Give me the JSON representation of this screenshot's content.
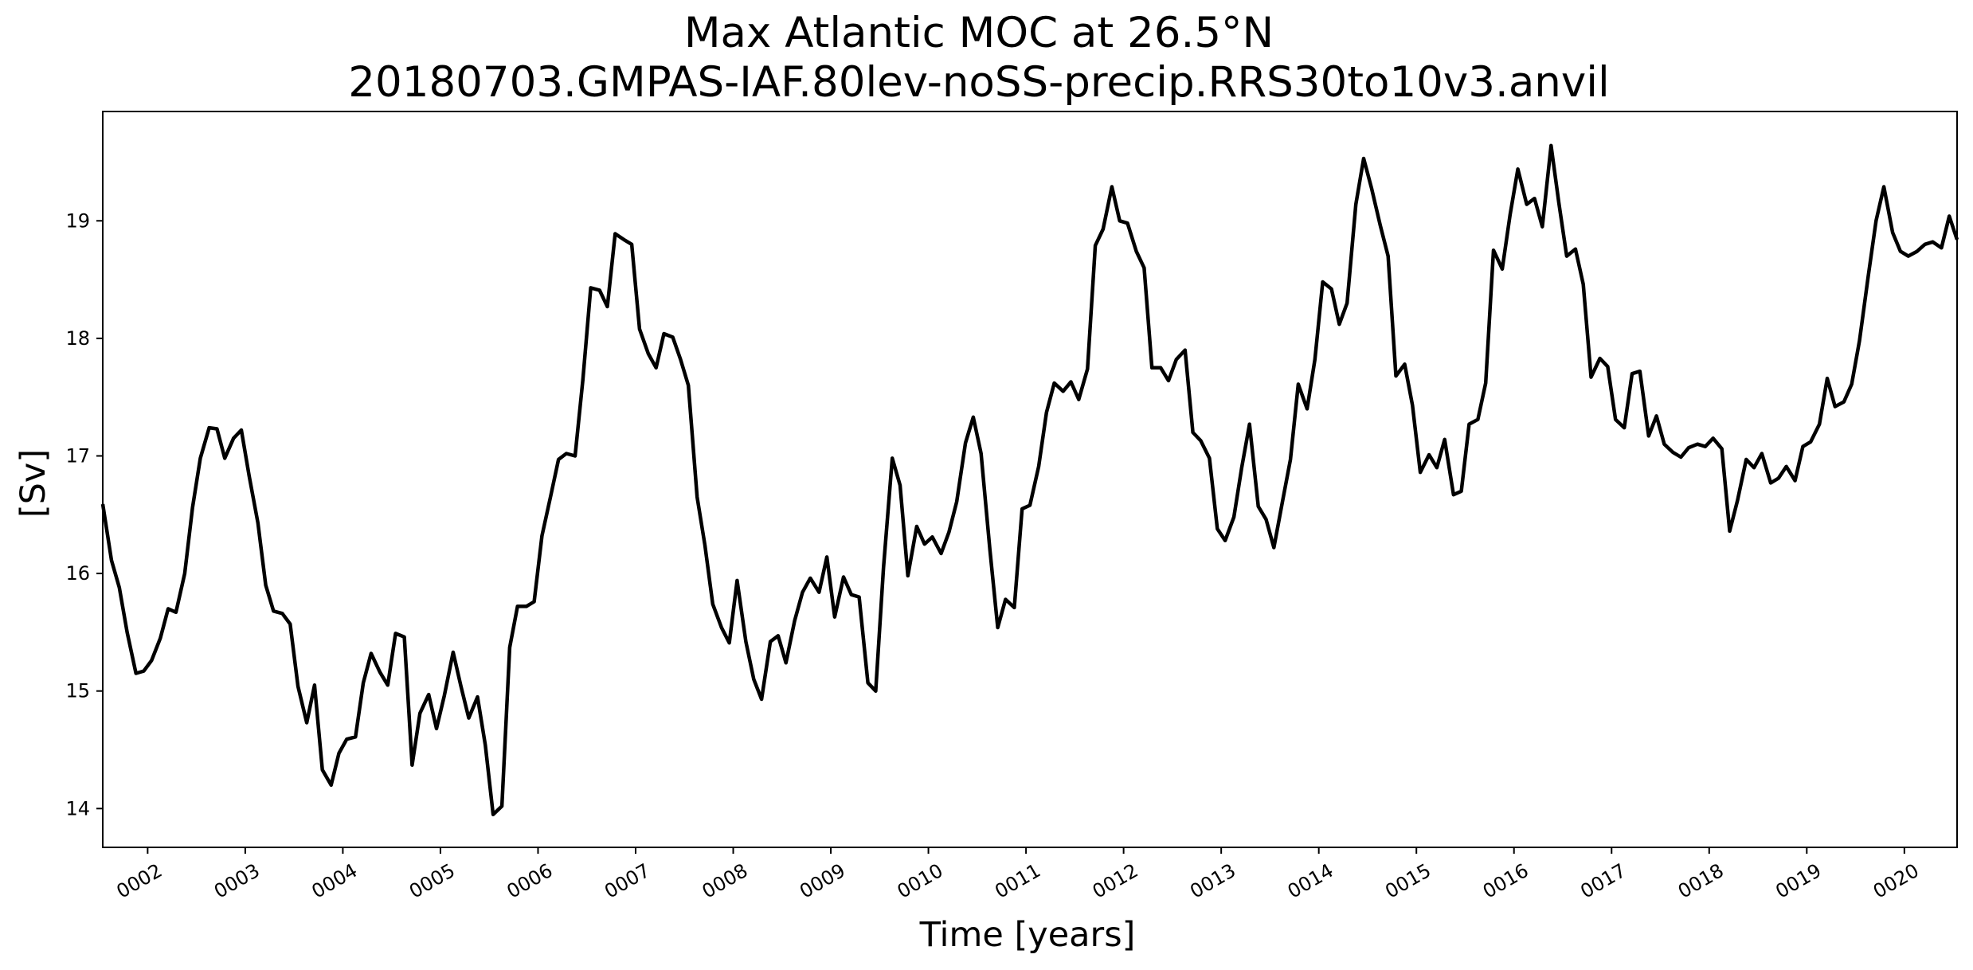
{
  "chart_data": {
    "type": "line",
    "title": "Max Atlantic MOC at 26.5°N",
    "subtitle": "20180703.GMPAS-IAF.80lev-noSS-precip.RRS30to10v3.anvil",
    "xlabel": "Time [years]",
    "ylabel": "[Sv]",
    "xlim": [
      1.54,
      20.54
    ],
    "ylim": [
      13.67,
      19.93
    ],
    "x_ticks": [
      {
        "value": 2,
        "label": "0002"
      },
      {
        "value": 3,
        "label": "0003"
      },
      {
        "value": 4,
        "label": "0004"
      },
      {
        "value": 5,
        "label": "0005"
      },
      {
        "value": 6,
        "label": "0006"
      },
      {
        "value": 7,
        "label": "0007"
      },
      {
        "value": 8,
        "label": "0008"
      },
      {
        "value": 9,
        "label": "0009"
      },
      {
        "value": 10,
        "label": "0010"
      },
      {
        "value": 11,
        "label": "0011"
      },
      {
        "value": 12,
        "label": "0012"
      },
      {
        "value": 13,
        "label": "0013"
      },
      {
        "value": 14,
        "label": "0014"
      },
      {
        "value": 15,
        "label": "0015"
      },
      {
        "value": 16,
        "label": "0016"
      },
      {
        "value": 17,
        "label": "0017"
      },
      {
        "value": 18,
        "label": "0018"
      },
      {
        "value": 19,
        "label": "0019"
      },
      {
        "value": 20,
        "label": "0020"
      }
    ],
    "y_ticks": [
      {
        "value": 14,
        "label": "14"
      },
      {
        "value": 15,
        "label": "15"
      },
      {
        "value": 16,
        "label": "16"
      },
      {
        "value": 17,
        "label": "17"
      },
      {
        "value": 18,
        "label": "18"
      },
      {
        "value": 19,
        "label": "19"
      }
    ],
    "grid": false,
    "line_color": "#000000",
    "series": [
      {
        "x": [
          1.54,
          1.63,
          1.71,
          1.79,
          1.88,
          1.96,
          2.04,
          2.13,
          2.21,
          2.29,
          2.38,
          2.46,
          2.54,
          2.63,
          2.71,
          2.79,
          2.88,
          2.96,
          3.04,
          3.13,
          3.21,
          3.29,
          3.38,
          3.46,
          3.54,
          3.63,
          3.71,
          3.79,
          3.88,
          3.96,
          4.04,
          4.13,
          4.21,
          4.29,
          4.38,
          4.46,
          4.54,
          4.63,
          4.71,
          4.79,
          4.88,
          4.96,
          5.04,
          5.13,
          5.21,
          5.29,
          5.38,
          5.46,
          5.54,
          5.63,
          5.71,
          5.79,
          5.88,
          5.96,
          6.04,
          6.13,
          6.21,
          6.29,
          6.38,
          6.46,
          6.54,
          6.63,
          6.71,
          6.79,
          6.88,
          6.96,
          7.04,
          7.13,
          7.21,
          7.29,
          7.38,
          7.46,
          7.54,
          7.63,
          7.71,
          7.79,
          7.88,
          7.96,
          8.04,
          8.13,
          8.21,
          8.29,
          8.38,
          8.46,
          8.54,
          8.63,
          8.71,
          8.79,
          8.88,
          8.96,
          9.04,
          9.13,
          9.21,
          9.29,
          9.38,
          9.46,
          9.54,
          9.63,
          9.71,
          9.79,
          9.88,
          9.96,
          10.04,
          10.13,
          10.21,
          10.29,
          10.38,
          10.46,
          10.54,
          10.63,
          10.71,
          10.79,
          10.88,
          10.96,
          11.04,
          11.13,
          11.21,
          11.29,
          11.38,
          11.46,
          11.54,
          11.63,
          11.71,
          11.79,
          11.88,
          11.96,
          12.04,
          12.13,
          12.21,
          12.29,
          12.38,
          12.46,
          12.54,
          12.63,
          12.71,
          12.79,
          12.88,
          12.96,
          13.04,
          13.13,
          13.21,
          13.29,
          13.38,
          13.46,
          13.54,
          13.63,
          13.71,
          13.79,
          13.88,
          13.96,
          14.04,
          14.13,
          14.21,
          14.29,
          14.38,
          14.46,
          14.54,
          14.63,
          14.71,
          14.79,
          14.88,
          14.96,
          15.04,
          15.13,
          15.21,
          15.29,
          15.38,
          15.46,
          15.54,
          15.63,
          15.71,
          15.79,
          15.88,
          15.96,
          16.04,
          16.13,
          16.21,
          16.29,
          16.38,
          16.46,
          16.54,
          16.63,
          16.71,
          16.79,
          16.88,
          16.96,
          17.04,
          17.13,
          17.21,
          17.29,
          17.38,
          17.46,
          17.54,
          17.63,
          17.71,
          17.79,
          17.88,
          17.96,
          18.04,
          18.13,
          18.21,
          18.29,
          18.38,
          18.46,
          18.54,
          18.63,
          18.71,
          18.79,
          18.88,
          18.96,
          19.04,
          19.13,
          19.21,
          19.29,
          19.38,
          19.46,
          19.54,
          19.63,
          19.71,
          19.79,
          19.88,
          19.96,
          20.04,
          20.13,
          20.21,
          20.29,
          20.38,
          20.46,
          20.54
        ],
        "values": [
          16.59,
          16.11,
          15.88,
          15.5,
          15.15,
          15.17,
          15.26,
          15.45,
          15.7,
          15.67,
          16.0,
          16.56,
          16.98,
          17.24,
          17.23,
          16.98,
          17.15,
          17.22,
          16.83,
          16.43,
          15.9,
          15.68,
          15.66,
          15.57,
          15.04,
          14.73,
          15.05,
          14.33,
          14.2,
          14.47,
          14.59,
          14.61,
          15.07,
          15.32,
          15.16,
          15.05,
          15.49,
          15.46,
          14.37,
          14.81,
          14.97,
          14.68,
          14.96,
          15.33,
          15.04,
          14.77,
          14.95,
          14.54,
          13.95,
          14.02,
          15.37,
          15.72,
          15.72,
          15.76,
          16.32,
          16.66,
          16.97,
          17.02,
          17.0,
          17.65,
          18.43,
          18.41,
          18.27,
          18.89,
          18.84,
          18.8,
          18.08,
          17.87,
          17.75,
          18.04,
          18.01,
          17.82,
          17.6,
          16.65,
          16.24,
          15.74,
          15.54,
          15.41,
          15.94,
          15.42,
          15.1,
          14.93,
          15.42,
          15.47,
          15.24,
          15.6,
          15.84,
          15.96,
          15.84,
          16.14,
          15.63,
          15.97,
          15.82,
          15.8,
          15.07,
          15.0,
          16.05,
          16.98,
          16.75,
          15.98,
          16.4,
          16.25,
          16.31,
          16.17,
          16.35,
          16.61,
          17.11,
          17.33,
          17.02,
          16.2,
          15.54,
          15.78,
          15.71,
          16.55,
          16.58,
          16.91,
          17.37,
          17.62,
          17.55,
          17.63,
          17.48,
          17.74,
          18.79,
          18.93,
          19.29,
          19.0,
          18.98,
          18.74,
          18.6,
          17.75,
          17.75,
          17.64,
          17.82,
          17.9,
          17.2,
          17.13,
          16.98,
          16.38,
          16.28,
          16.48,
          16.9,
          17.27,
          16.57,
          16.46,
          16.22,
          16.62,
          16.97,
          17.61,
          17.4,
          17.82,
          18.48,
          18.42,
          18.12,
          18.3,
          19.14,
          19.53,
          19.28,
          18.96,
          18.7,
          17.68,
          17.78,
          17.43,
          16.86,
          17.01,
          16.9,
          17.14,
          16.67,
          16.7,
          17.27,
          17.31,
          17.62,
          18.75,
          18.59,
          19.05,
          19.44,
          19.14,
          19.19,
          18.95,
          19.64,
          19.15,
          18.7,
          18.76,
          18.46,
          17.67,
          17.83,
          17.76,
          17.31,
          17.24,
          17.7,
          17.72,
          17.17,
          17.34,
          17.1,
          17.03,
          16.99,
          17.07,
          17.1,
          17.08,
          17.15,
          17.06,
          16.36,
          16.62,
          16.97,
          16.9,
          17.02,
          16.77,
          16.81,
          16.91,
          16.79,
          17.08,
          17.12,
          17.27,
          17.66,
          17.42,
          17.46,
          17.61,
          17.98,
          18.53,
          19.0,
          19.29,
          18.9,
          18.74,
          18.7,
          18.74,
          18.8,
          18.82,
          18.77,
          19.04,
          18.84
        ]
      }
    ]
  }
}
